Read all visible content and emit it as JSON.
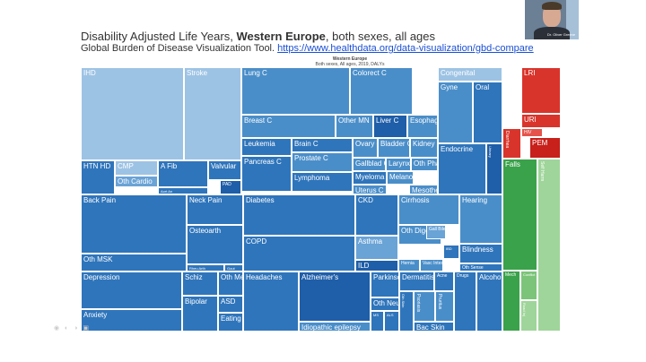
{
  "title": {
    "main_prefix": "Disability Adjusted Life Years, ",
    "region": "Western Europe",
    "main_suffix": ", both sexes, all ages"
  },
  "subtitle": {
    "text": "Global Burden of Disease Visualization Tool. ",
    "url": "https://www.healthdata.org/data-visualization/gbd-compare"
  },
  "chart_header": {
    "line1": "Western Europe",
    "line2": "Both sexes, All ages, 2019, DALYs"
  },
  "video": {
    "name": "Dr. Oliver Greene"
  },
  "overlay_icons": "◉ ◐ ◑ ▣",
  "colors": {
    "ncd_light": "#9dc3e4",
    "ncd_mid": "#4a8ec9",
    "ncd_dark": "#1f5ea8",
    "communicable": "#d9342b",
    "injury": "#3aa24a",
    "injury_light": "#9fd59a"
  },
  "chart_data": {
    "type": "treemap",
    "title": "Western Europe",
    "subtitle": "Both sexes, All ages, 2019, DALYs",
    "cells": [
      {
        "label": "IHD",
        "group": "cardiovascular"
      },
      {
        "label": "Stroke",
        "group": "cardiovascular"
      },
      {
        "label": "HTN HD",
        "group": "cardiovascular"
      },
      {
        "label": "CMP",
        "group": "cardiovascular"
      },
      {
        "label": "Oth Cardio",
        "group": "cardiovascular"
      },
      {
        "label": "A Fib",
        "group": "cardiovascular"
      },
      {
        "label": "Aort An",
        "group": "cardiovascular"
      },
      {
        "label": "Valvular",
        "group": "cardiovascular"
      },
      {
        "label": "PAD",
        "group": "cardiovascular"
      },
      {
        "label": "Lung C",
        "group": "neoplasms"
      },
      {
        "label": "Colorect C",
        "group": "neoplasms"
      },
      {
        "label": "Breast C",
        "group": "neoplasms"
      },
      {
        "label": "Other MN",
        "group": "neoplasms"
      },
      {
        "label": "Liver C",
        "group": "neoplasms"
      },
      {
        "label": "Esophag C",
        "group": "neoplasms"
      },
      {
        "label": "Leukemia",
        "group": "neoplasms"
      },
      {
        "label": "Brain C",
        "group": "neoplasms"
      },
      {
        "label": "Ovary C",
        "group": "neoplasms"
      },
      {
        "label": "Bladder C",
        "group": "neoplasms"
      },
      {
        "label": "Kidney C",
        "group": "neoplasms"
      },
      {
        "label": "Pancreas C",
        "group": "neoplasms"
      },
      {
        "label": "Prostate C",
        "group": "neoplasms"
      },
      {
        "label": "Gallblad C",
        "group": "neoplasms"
      },
      {
        "label": "Larynx C",
        "group": "neoplasms"
      },
      {
        "label": "Oth Phar C",
        "group": "neoplasms"
      },
      {
        "label": "Lymphoma",
        "group": "neoplasms"
      },
      {
        "label": "Myeloma",
        "group": "neoplasms"
      },
      {
        "label": "Melanoma",
        "group": "neoplasms"
      },
      {
        "label": "Uterus C",
        "group": "neoplasms"
      },
      {
        "label": "Mesothel",
        "group": "neoplasms"
      },
      {
        "label": "Congenital",
        "group": "other_ncd"
      },
      {
        "label": "Gyne",
        "group": "other_ncd"
      },
      {
        "label": "Oral",
        "group": "other_ncd"
      },
      {
        "label": "Endocrine",
        "group": "other_ncd"
      },
      {
        "label": "Urinary",
        "group": "other_ncd"
      },
      {
        "label": "Back Pain",
        "group": "musculoskeletal"
      },
      {
        "label": "Neck Pain",
        "group": "musculoskeletal"
      },
      {
        "label": "Osteoarth",
        "group": "musculoskeletal"
      },
      {
        "label": "Oth MSK",
        "group": "musculoskeletal"
      },
      {
        "label": "Rheu Arth",
        "group": "musculoskeletal"
      },
      {
        "label": "Gout",
        "group": "musculoskeletal"
      },
      {
        "label": "Diabetes",
        "group": "diabetes_ckd"
      },
      {
        "label": "CKD",
        "group": "diabetes_ckd"
      },
      {
        "label": "COPD",
        "group": "respiratory"
      },
      {
        "label": "Asthma",
        "group": "respiratory"
      },
      {
        "label": "ILD",
        "group": "respiratory"
      },
      {
        "label": "Cirrhosis",
        "group": "digestive"
      },
      {
        "label": "Hearing",
        "group": "sense"
      },
      {
        "label": "Blindness",
        "group": "sense"
      },
      {
        "label": "Oth Sense",
        "group": "sense"
      },
      {
        "label": "Oth Digest",
        "group": "digestive"
      },
      {
        "label": "Gall Bile",
        "group": "digestive"
      },
      {
        "label": "IBD",
        "group": "digestive"
      },
      {
        "label": "Hernia",
        "group": "digestive"
      },
      {
        "label": "Vasc Intest",
        "group": "digestive"
      },
      {
        "label": "Depression",
        "group": "mental"
      },
      {
        "label": "Anxiety",
        "group": "mental"
      },
      {
        "label": "Schiz",
        "group": "mental"
      },
      {
        "label": "Oth Ment",
        "group": "mental"
      },
      {
        "label": "Bipolar",
        "group": "mental"
      },
      {
        "label": "ASD",
        "group": "mental"
      },
      {
        "label": "Eating",
        "group": "mental"
      },
      {
        "label": "Headaches",
        "group": "neurological"
      },
      {
        "label": "Alzheimer's",
        "group": "neurological"
      },
      {
        "label": "Idiopathic epilepsy",
        "group": "neurological"
      },
      {
        "label": "Parkinson's",
        "group": "neurological"
      },
      {
        "label": "Oth Neuro",
        "group": "neurological"
      },
      {
        "label": "MS",
        "group": "neurological"
      },
      {
        "label": "ALS",
        "group": "neurological"
      },
      {
        "label": "Dermatitis",
        "group": "skin"
      },
      {
        "label": "Acne",
        "group": "skin"
      },
      {
        "label": "Oth Skin",
        "group": "skin"
      },
      {
        "label": "Psoriasis",
        "group": "skin"
      },
      {
        "label": "Pruritus",
        "group": "skin"
      },
      {
        "label": "Bac Skin",
        "group": "skin"
      },
      {
        "label": "Drugs",
        "group": "substance"
      },
      {
        "label": "Alcohol",
        "group": "substance"
      },
      {
        "label": "LRI",
        "group": "communicable"
      },
      {
        "label": "URI",
        "group": "communicable"
      },
      {
        "label": "HIV",
        "group": "communicable"
      },
      {
        "label": "Diarrhea",
        "group": "communicable"
      },
      {
        "label": "PEM",
        "group": "communicable"
      },
      {
        "label": "Falls",
        "group": "injuries"
      },
      {
        "label": "Self Harm",
        "group": "injuries"
      },
      {
        "label": "Mech",
        "group": "injuries"
      },
      {
        "label": "Road Inj",
        "group": "injuries"
      },
      {
        "label": "Conflict",
        "group": "injuries"
      }
    ]
  }
}
